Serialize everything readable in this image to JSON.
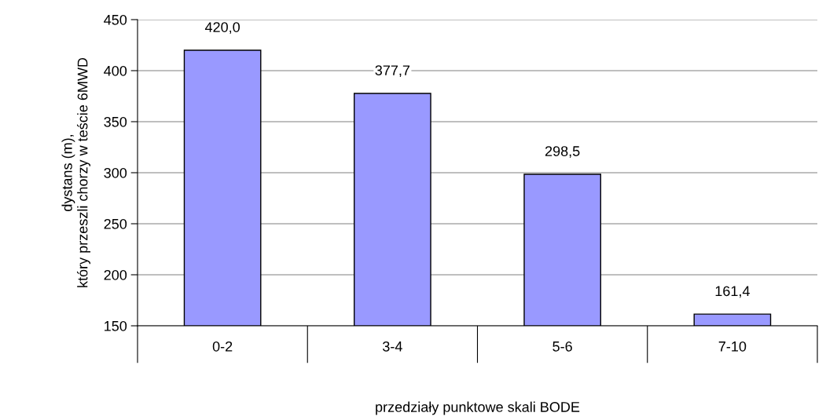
{
  "chart_data": {
    "type": "bar",
    "xlabel": "przedziały punktowe skali BODE",
    "ylabel": "dystans (m),\nktóry przeszli chorzy w teście 6MWD",
    "categories": [
      "0-2",
      "3-4",
      "5-6",
      "7-10"
    ],
    "values": [
      420.0,
      377.7,
      298.5,
      161.4
    ],
    "value_labels": [
      "420,0",
      "377,7",
      "298,5",
      "161,4"
    ],
    "color": "#9999ff",
    "ylim": [
      150,
      450
    ],
    "yticks": [
      150,
      200,
      250,
      300,
      350,
      400,
      450
    ],
    "grid": "y",
    "legend": false
  }
}
